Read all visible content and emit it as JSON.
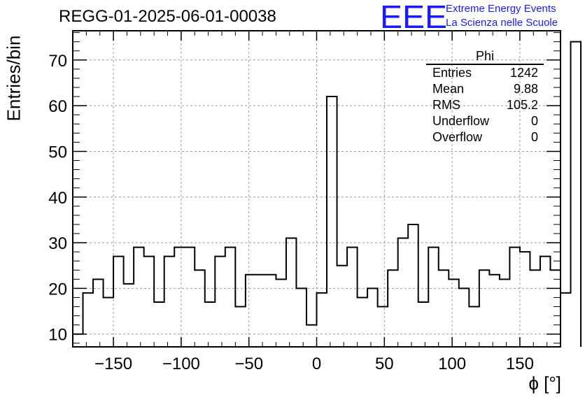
{
  "title": "REGG-01-2025-06-01-00038",
  "logo": {
    "mark": "EEE",
    "line1": "Extreme Energy Events",
    "line2": "La Scienza nelle Scuole",
    "color": "#1a1aff"
  },
  "stats": {
    "name": "Phi",
    "rows": [
      {
        "label": "Entries",
        "value": "1242"
      },
      {
        "label": "Mean",
        "value": "9.88"
      },
      {
        "label": "RMS",
        "value": "105.2"
      },
      {
        "label": "Underflow",
        "value": "0"
      },
      {
        "label": "Overflow",
        "value": "0"
      }
    ]
  },
  "chart_data": {
    "type": "bar",
    "style": "step-histogram",
    "xlabel": "ϕ [°]",
    "ylabel": "Entries/bin",
    "xlim": [
      -180,
      180
    ],
    "ylim": [
      7.2,
      76.4
    ],
    "bin_width": 7.5,
    "x_bin_edges_start": -180,
    "values": [
      10,
      19,
      22,
      18,
      27,
      21,
      29,
      27,
      17,
      27,
      29,
      29,
      24,
      17,
      27,
      29,
      16,
      23,
      23,
      23,
      22,
      31,
      20,
      12,
      19,
      62,
      25,
      29,
      18,
      20,
      16,
      24,
      31,
      34,
      17,
      29,
      24,
      22,
      20,
      16,
      24,
      23,
      22,
      29,
      28,
      24,
      27,
      24,
      19,
      74
    ],
    "x_ticks": [
      -150,
      -100,
      -50,
      0,
      50,
      100,
      150
    ],
    "x_tick_labels": [
      "−150",
      "−100",
      "−50",
      "0",
      "50",
      "100",
      "150"
    ],
    "y_ticks": [
      10,
      20,
      30,
      40,
      50,
      60,
      70
    ],
    "grid": true
  }
}
